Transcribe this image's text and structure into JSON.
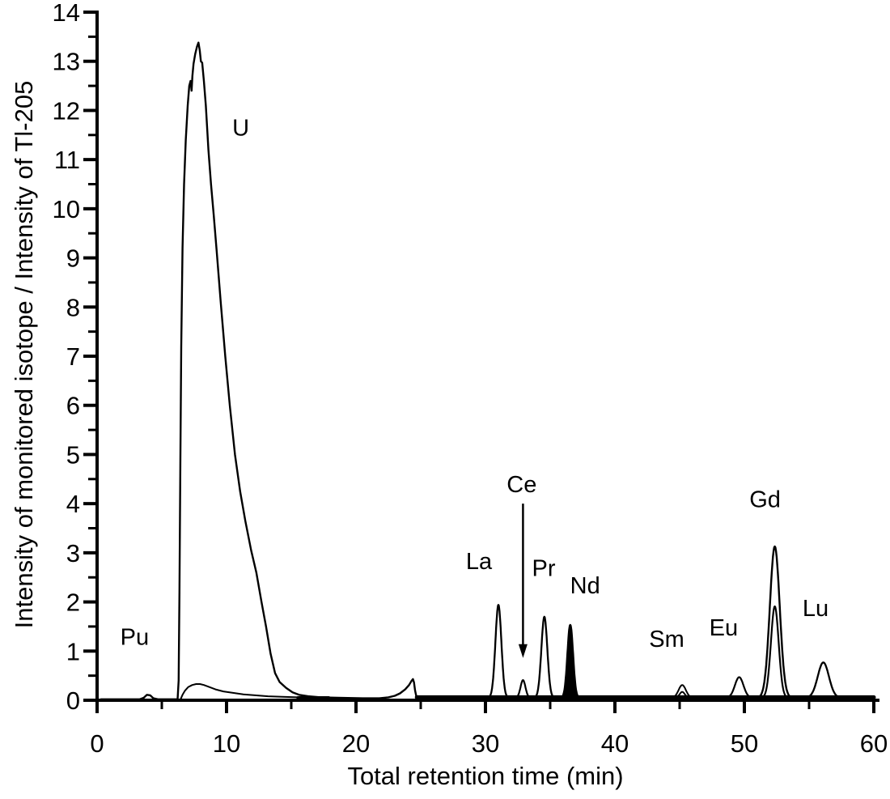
{
  "figure": {
    "kind": "chromatogram",
    "background_color": "#ffffff",
    "foreground_color": "#000000"
  },
  "chart_data": {
    "type": "line",
    "title": "",
    "xlabel": "Total retention time (min)",
    "ylabel": "Intensity of monitored isotope / Intensity of Tl-205",
    "xlim": [
      0,
      60
    ],
    "ylim": [
      0,
      14
    ],
    "x_major_ticks": [
      0,
      10,
      20,
      30,
      40,
      50,
      60
    ],
    "x_minor_ticks": [
      5,
      15,
      25,
      35,
      45,
      55
    ],
    "y_major_ticks": [
      0,
      1,
      2,
      3,
      4,
      5,
      6,
      7,
      8,
      9,
      10,
      11,
      12,
      13,
      14
    ],
    "y_minor_ticks": [
      0.5,
      1.5,
      2.5,
      3.5,
      4.5,
      5.5,
      6.5,
      7.5,
      8.5,
      9.5,
      10.5,
      11.5,
      12.5,
      13.5
    ],
    "grid": false,
    "legend": false,
    "line_color": "#000000",
    "peaks": [
      {
        "symbol": "Pu",
        "retention_min": 3.9,
        "apex_intensity": 0.11,
        "label_x": 2.9,
        "label_y": 1.29
      },
      {
        "symbol": "U",
        "retention_min": 7.8,
        "apex_intensity": 13.38,
        "label_x": 11.1,
        "label_y": 11.65
      },
      {
        "symbol": "La",
        "retention_min": 31.0,
        "apex_intensity": 1.94,
        "label_x": 29.5,
        "label_y": 2.83
      },
      {
        "symbol": "Ce",
        "retention_min": 32.9,
        "apex_intensity": 0.41,
        "label_x": 32.8,
        "label_y": 4.4
      },
      {
        "symbol": "Pr",
        "retention_min": 34.55,
        "apex_intensity": 1.7,
        "label_x": 34.5,
        "label_y": 2.69
      },
      {
        "symbol": "Nd",
        "retention_min": 36.55,
        "apex_intensity": 1.53,
        "label_x": 37.7,
        "label_y": 2.34
      },
      {
        "symbol": "Sm",
        "retention_min": 45.2,
        "apex_intensity": 0.31,
        "label_x": 44.0,
        "label_y": 1.25
      },
      {
        "symbol": "Eu",
        "retention_min": 49.6,
        "apex_intensity": 0.47,
        "label_x": 48.4,
        "label_y": 1.48
      },
      {
        "symbol": "Gd",
        "retention_min": 52.35,
        "apex_intensity": 3.13,
        "label_x": 51.6,
        "label_y": 4.09
      },
      {
        "symbol": "Lu",
        "retention_min": 56.1,
        "apex_intensity": 0.77,
        "label_x": 55.5,
        "label_y": 1.88
      }
    ],
    "annotation_arrow": {
      "target": "Ce",
      "x": 32.9,
      "y_start": 4.0,
      "y_end": 0.86
    },
    "series": [
      {
        "name": "actinide-trace",
        "stroke_width": 2.4,
        "points": [
          [
            0.3,
            0.02
          ],
          [
            3.3,
            0.02
          ],
          [
            3.6,
            0.05
          ],
          [
            3.85,
            0.11
          ],
          [
            4.1,
            0.1
          ],
          [
            4.35,
            0.04
          ],
          [
            4.7,
            0.02
          ],
          [
            6.22,
            0.02
          ],
          [
            6.3,
            0.4
          ],
          [
            6.36,
            2.2
          ],
          [
            6.43,
            4.8
          ],
          [
            6.5,
            7.2
          ],
          [
            6.6,
            9.2
          ],
          [
            6.72,
            10.5
          ],
          [
            6.85,
            11.4
          ],
          [
            7.0,
            12.1
          ],
          [
            7.12,
            12.5
          ],
          [
            7.22,
            12.6
          ],
          [
            7.3,
            12.4
          ],
          [
            7.36,
            12.7
          ],
          [
            7.45,
            12.95
          ],
          [
            7.58,
            13.15
          ],
          [
            7.72,
            13.3
          ],
          [
            7.83,
            13.38
          ],
          [
            7.93,
            13.22
          ],
          [
            8.02,
            13.0
          ],
          [
            8.12,
            12.97
          ],
          [
            8.25,
            12.6
          ],
          [
            8.4,
            12.1
          ],
          [
            8.6,
            11.2
          ],
          [
            8.8,
            10.5
          ],
          [
            9.0,
            9.9
          ],
          [
            9.25,
            9.1
          ],
          [
            9.55,
            8.1
          ],
          [
            9.9,
            7.0
          ],
          [
            10.25,
            6.0
          ],
          [
            10.65,
            5.0
          ],
          [
            11.05,
            4.25
          ],
          [
            11.45,
            3.65
          ],
          [
            11.9,
            3.05
          ],
          [
            12.3,
            2.6
          ],
          [
            12.7,
            2.0
          ],
          [
            13.05,
            1.5
          ],
          [
            13.4,
            0.95
          ],
          [
            13.75,
            0.55
          ],
          [
            14.1,
            0.37
          ],
          [
            14.6,
            0.25
          ],
          [
            15.1,
            0.16
          ],
          [
            15.6,
            0.11
          ],
          [
            16.3,
            0.08
          ],
          [
            17.3,
            0.06
          ],
          [
            18.6,
            0.05
          ],
          [
            20.5,
            0.04
          ],
          [
            21.8,
            0.04
          ],
          [
            22.5,
            0.06
          ],
          [
            23.0,
            0.09
          ],
          [
            23.4,
            0.14
          ],
          [
            23.8,
            0.22
          ],
          [
            24.1,
            0.31
          ],
          [
            24.28,
            0.39
          ],
          [
            24.4,
            0.43
          ],
          [
            24.48,
            0.36
          ],
          [
            24.56,
            0.2
          ],
          [
            24.65,
            0.09
          ],
          [
            24.8,
            0.06
          ],
          [
            25.3,
            0.05
          ],
          [
            60,
            0.05
          ]
        ]
      },
      {
        "name": "uranium-secondary-trace",
        "stroke_width": 2,
        "points": [
          [
            6.45,
            0.02
          ],
          [
            6.6,
            0.11
          ],
          [
            6.8,
            0.2
          ],
          [
            7.05,
            0.27
          ],
          [
            7.35,
            0.31
          ],
          [
            7.65,
            0.33
          ],
          [
            7.95,
            0.33
          ],
          [
            8.25,
            0.31
          ],
          [
            8.65,
            0.27
          ],
          [
            9.15,
            0.22
          ],
          [
            9.75,
            0.18
          ],
          [
            10.5,
            0.15
          ],
          [
            11.3,
            0.12
          ],
          [
            12.2,
            0.1
          ],
          [
            13.2,
            0.08
          ],
          [
            14.3,
            0.07
          ],
          [
            15.5,
            0.06
          ],
          [
            16.8,
            0.05
          ]
        ]
      },
      {
        "name": "baseline-band-mid",
        "stroke_width": 3.5,
        "points": [
          [
            15.5,
            0.055
          ],
          [
            17.9,
            0.055
          ]
        ]
      },
      {
        "name": "baseline-band-right",
        "stroke_width": 5,
        "points": [
          [
            24.7,
            0.06
          ],
          [
            60,
            0.06
          ]
        ]
      },
      {
        "name": "La-peak",
        "stroke_width": 2.3,
        "gauss": {
          "center": 31.0,
          "height": 1.89,
          "sigma": 0.23,
          "base": 0.05
        }
      },
      {
        "name": "Ce-peak",
        "stroke_width": 2.2,
        "gauss": {
          "center": 32.9,
          "height": 0.36,
          "sigma": 0.19,
          "base": 0.05
        }
      },
      {
        "name": "Pr-peak",
        "stroke_width": 2.3,
        "gauss": {
          "center": 34.55,
          "height": 1.65,
          "sigma": 0.23,
          "base": 0.05
        }
      },
      {
        "name": "Nd-peak",
        "stroke_width": 2.6,
        "fill": true,
        "gauss": {
          "center": 36.55,
          "height": 1.48,
          "sigma": 0.21,
          "base": 0.05
        }
      },
      {
        "name": "Sm-peak-outer",
        "stroke_width": 2,
        "gauss": {
          "center": 45.2,
          "height": 0.26,
          "sigma": 0.28,
          "base": 0.05
        }
      },
      {
        "name": "Sm-peak-inner",
        "stroke_width": 2,
        "gauss": {
          "center": 45.2,
          "height": 0.12,
          "sigma": 0.2,
          "base": 0.05
        }
      },
      {
        "name": "Eu-peak",
        "stroke_width": 2.2,
        "gauss": {
          "center": 49.6,
          "height": 0.42,
          "sigma": 0.33,
          "base": 0.05
        }
      },
      {
        "name": "Gd-peak-outer",
        "stroke_width": 2.4,
        "gauss": {
          "center": 52.35,
          "height": 3.08,
          "sigma": 0.38,
          "base": 0.05
        }
      },
      {
        "name": "Gd-peak-inner",
        "stroke_width": 2.2,
        "gauss": {
          "center": 52.35,
          "height": 1.86,
          "sigma": 0.3,
          "base": 0.05
        }
      },
      {
        "name": "Lu-peak",
        "stroke_width": 2.3,
        "gauss": {
          "center": 56.1,
          "height": 0.72,
          "sigma": 0.43,
          "base": 0.05
        }
      }
    ]
  }
}
